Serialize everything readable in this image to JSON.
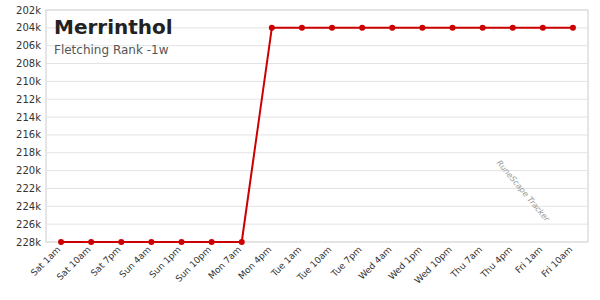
{
  "chart_data": {
    "type": "line",
    "title": "Merrinthol",
    "subtitle": "Fletching Rank -1w",
    "categories": [
      "Sat 1am",
      "Sat 10am",
      "Sat 7pm",
      "Sun 4am",
      "Sun 1pm",
      "Sun 10pm",
      "Mon 7am",
      "Mon 4pm",
      "Tue 1am",
      "Tue 10am",
      "Tue 7pm",
      "Wed 4am",
      "Wed 1pm",
      "Wed 10pm",
      "Thu 7am",
      "Thu 4pm",
      "Fri 1am",
      "Fri 10am"
    ],
    "values": [
      228000,
      228000,
      228000,
      228000,
      228000,
      228000,
      228000,
      204000,
      204000,
      204000,
      204000,
      204000,
      204000,
      204000,
      204000,
      204000,
      204000,
      204000
    ],
    "color": "#cc0000",
    "marker": "circle",
    "ylim": [
      228000,
      202000
    ],
    "yticks": [
      {
        "value": 202000,
        "label": "202k"
      },
      {
        "value": 204000,
        "label": "204k"
      },
      {
        "value": 206000,
        "label": "206k"
      },
      {
        "value": 208000,
        "label": "208k"
      },
      {
        "value": 210000,
        "label": "210k"
      },
      {
        "value": 212000,
        "label": "212k"
      },
      {
        "value": 214000,
        "label": "214k"
      },
      {
        "value": 216000,
        "label": "216k"
      },
      {
        "value": 218000,
        "label": "218k"
      },
      {
        "value": 220000,
        "label": "220k"
      },
      {
        "value": 222000,
        "label": "222k"
      },
      {
        "value": 224000,
        "label": "224k"
      },
      {
        "value": 226000,
        "label": "226k"
      },
      {
        "value": 228000,
        "label": "228k"
      }
    ],
    "grid": true,
    "annotations": [
      "RuneScape Tracker"
    ]
  }
}
